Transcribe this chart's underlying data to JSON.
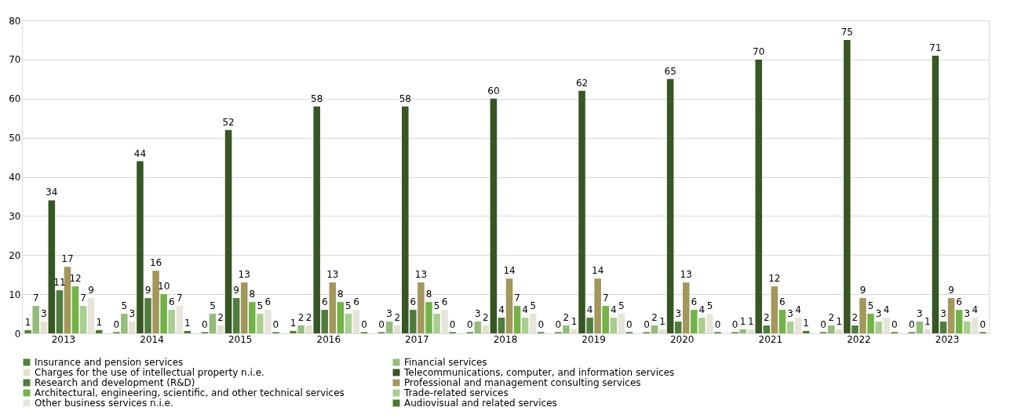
{
  "chart_data": {
    "type": "bar",
    "categories": [
      "2013",
      "2014",
      "2015",
      "2016",
      "2017",
      "2018",
      "2019",
      "2020",
      "2021",
      "2022",
      "2023"
    ],
    "series": [
      {
        "name": "Insurance and pension services",
        "color": "#548235",
        "values": [
          0.8,
          0.3,
          0.3,
          0.6,
          0.3,
          0.3,
          0.3,
          0.3,
          0.3,
          0.3,
          0.3
        ],
        "value_labels": [
          "1",
          "0",
          "0",
          "1",
          "0",
          "0",
          "0",
          "0",
          "0",
          "0",
          "0"
        ]
      },
      {
        "name": "Financial services",
        "color": "#93bd7b",
        "values": [
          7,
          5,
          5,
          2,
          3,
          3,
          2,
          2,
          1,
          2,
          3
        ]
      },
      {
        "name": "Charges for the use of intellectual property n.i.e.",
        "color": "#e4e0cf",
        "values": [
          3,
          3,
          2,
          2,
          2,
          2,
          1,
          1,
          1,
          1,
          1
        ]
      },
      {
        "name": "Telecommunications, computer, and information services",
        "color": "#375623",
        "values": [
          34,
          44,
          52,
          58,
          58,
          60,
          62,
          65,
          70,
          75,
          71
        ]
      },
      {
        "name": "Research and development (R&D)",
        "color": "#507c3f",
        "values": [
          11,
          9,
          9,
          6,
          6,
          4,
          4,
          3,
          2,
          2,
          3
        ]
      },
      {
        "name": "Professional and management consulting services",
        "color": "#a3975b",
        "values": [
          17,
          16,
          13,
          13,
          13,
          14,
          14,
          13,
          12,
          9,
          9
        ]
      },
      {
        "name": "Architectural, engineering, scientific, and other technical services",
        "color": "#72b347",
        "values": [
          12,
          10,
          8,
          8,
          8,
          7,
          7,
          6,
          6,
          5,
          6
        ]
      },
      {
        "name": "Trade-related services",
        "color": "#a9ce90",
        "values": [
          7,
          6,
          5,
          5,
          5,
          4,
          4,
          4,
          3,
          3,
          3
        ]
      },
      {
        "name": "Other business services n.i.e.",
        "color": "#e7e5da",
        "values": [
          9,
          7,
          6,
          6,
          6,
          5,
          5,
          5,
          4,
          4,
          4
        ]
      },
      {
        "name": "Audiovisual and related services",
        "color": "#4a7a30",
        "values": [
          0.8,
          0.6,
          0.3,
          0.3,
          0.3,
          0.3,
          0.3,
          0.3,
          0.6,
          0.3,
          0.3
        ],
        "value_labels": [
          "1",
          "1",
          "0",
          "0",
          "0",
          "0",
          "0",
          "0",
          "1",
          "0",
          "0"
        ]
      }
    ],
    "ylim": [
      0,
      80
    ],
    "yticks": [
      0,
      10,
      20,
      30,
      40,
      50,
      60,
      70,
      80
    ],
    "grid": "y",
    "legend": "bottom",
    "data_labels": true
  }
}
